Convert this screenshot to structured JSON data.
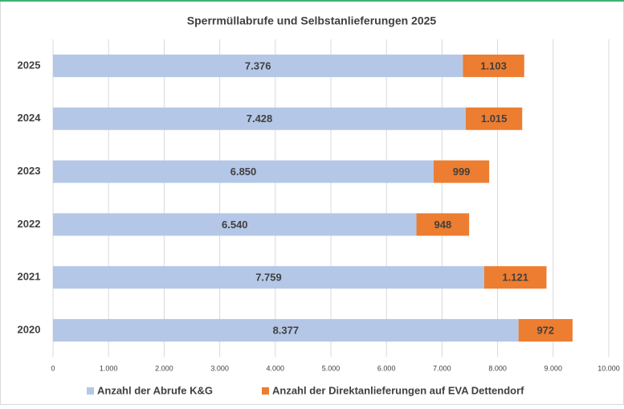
{
  "chart_data": {
    "type": "bar",
    "orientation": "horizontal",
    "stacked": true,
    "title": "Sperrmüllabrufe und Selbstanlieferungen 2025",
    "categories": [
      "2025",
      "2024",
      "2023",
      "2022",
      "2021",
      "2020"
    ],
    "series": [
      {
        "name": "Anzahl der Abrufe K&G",
        "color": "#b4c7e7",
        "values": [
          7376,
          7428,
          6850,
          6540,
          7759,
          8377
        ],
        "value_labels": [
          "7.376",
          "7.428",
          "6.850",
          "6.540",
          "7.759",
          "8.377"
        ]
      },
      {
        "name": "Anzahl der Direktanlieferungen auf EVA Dettendorf",
        "color": "#ed7d31",
        "values": [
          1103,
          1015,
          999,
          948,
          1121,
          972
        ],
        "value_labels": [
          "1.103",
          "1.015",
          "999",
          "948",
          "1.121",
          "972"
        ]
      }
    ],
    "xlim": [
      0,
      10000
    ],
    "xticks": [
      0,
      {
        "value": 1000,
        "label": "1.000"
      },
      {
        "value": 2000,
        "label": "2.000"
      },
      {
        "value": 3000,
        "label": "3.000"
      },
      {
        "value": 4000,
        "label": "4.000"
      },
      {
        "value": 5000,
        "label": "5.000"
      },
      {
        "value": 6000,
        "label": "6.000"
      },
      {
        "value": 7000,
        "label": "7.000"
      },
      {
        "value": 8000,
        "label": "8.000"
      },
      {
        "value": 9000,
        "label": "9.000"
      },
      {
        "value": 10000,
        "label": "10.000"
      }
    ],
    "grid": true,
    "legend": "bottom"
  }
}
